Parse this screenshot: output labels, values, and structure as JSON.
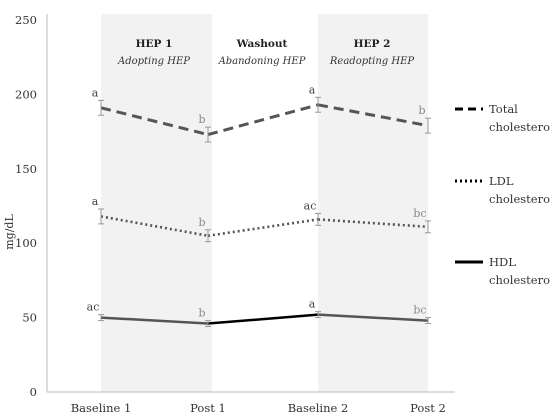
{
  "chart_data": {
    "type": "line",
    "categories": [
      "Baseline 1",
      "Post 1",
      "Baseline 2",
      "Post 2"
    ],
    "ylabel": "mg/dL",
    "ylim": [
      0,
      250
    ],
    "yticks": [
      "0",
      "50",
      "100",
      "150",
      "200",
      "250"
    ],
    "series": [
      {
        "name": "Total cholesterol",
        "name_lines": [
          "Total",
          "cholesterol"
        ],
        "values": [
          191,
          173,
          193,
          179
        ],
        "error": [
          5,
          5,
          5,
          5
        ],
        "significance": [
          "a",
          "b",
          "a",
          "b"
        ],
        "color": "#555555",
        "style": "dashed"
      },
      {
        "name": "LDL cholesterol",
        "name_lines": [
          "LDL",
          "cholesterol"
        ],
        "values": [
          118,
          105,
          116,
          111
        ],
        "error": [
          5,
          4,
          4,
          4
        ],
        "significance": [
          "a",
          "b",
          "ac",
          "bc"
        ],
        "color": "#555555",
        "style": "dotted"
      },
      {
        "name": "HDL cholesterol",
        "name_lines": [
          "HDL",
          "cholesterol"
        ],
        "values": [
          50,
          46,
          52,
          48
        ],
        "error": [
          2,
          2,
          2,
          2
        ],
        "significance": [
          "ac",
          "b",
          "a",
          "bc"
        ],
        "color": "#555555",
        "style": "solid"
      }
    ],
    "phases": [
      {
        "title": "HEP 1",
        "subtitle": "Adopting HEP",
        "shaded": true
      },
      {
        "title": "Washout",
        "subtitle": "Abandoning HEP",
        "shaded": false
      },
      {
        "title": "HEP 2",
        "subtitle": "Readopting HEP",
        "shaded": true
      }
    ],
    "grid": false,
    "legend_position": "right"
  }
}
